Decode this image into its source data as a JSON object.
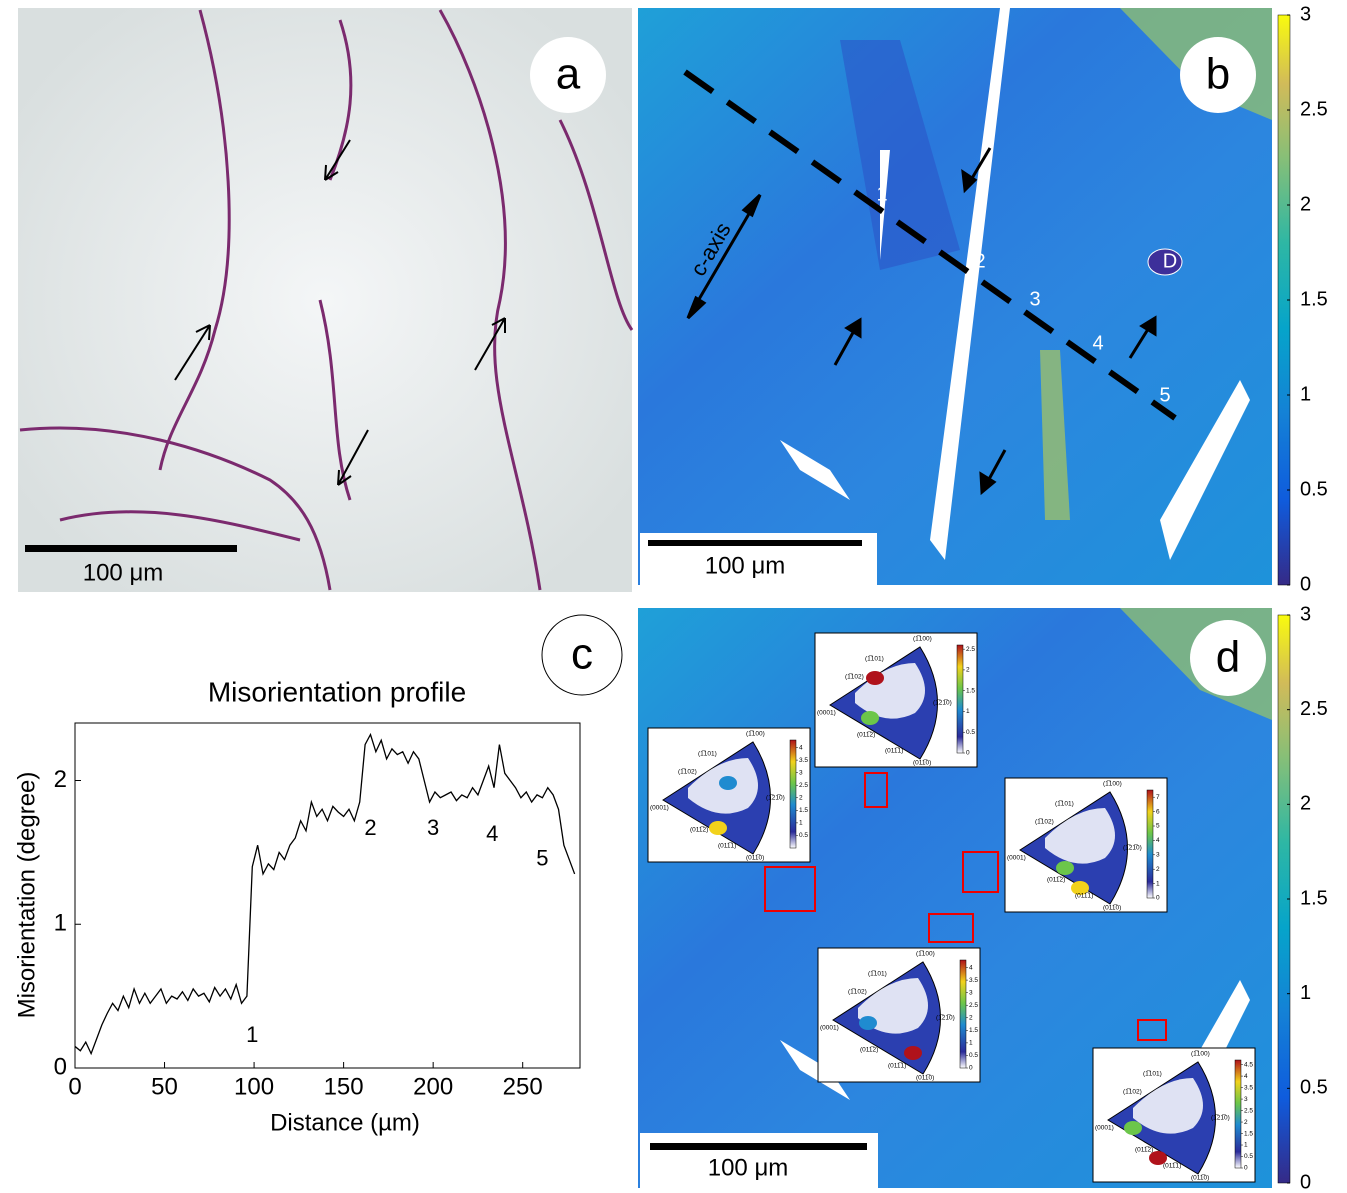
{
  "panels": {
    "a": {
      "label": "a",
      "scale_bar": "100 μm"
    },
    "b": {
      "label": "b",
      "scale_bar": "100 μm",
      "profile_labels": [
        "1",
        "2",
        "3",
        "4",
        "5"
      ],
      "grain_label": "D",
      "axis_label": "c-axis",
      "colorbar": {
        "lim": [
          0,
          3
        ],
        "ticks": [
          0,
          0.5,
          1,
          1.5,
          2,
          2.5,
          3
        ]
      }
    },
    "c": {
      "label": "c"
    },
    "d": {
      "label": "d",
      "scale_bar": "100 μm",
      "colorbar": {
        "lim": [
          0,
          3
        ],
        "ticks": [
          0,
          0.5,
          1,
          1.5,
          2,
          2.5,
          3
        ]
      },
      "poles": [
        "(0001)",
        "(1̅101)",
        "(1̅102)",
        "(1̅100)",
        "(1̅21̅0)",
        "(011̅0)",
        "(011̅1)",
        "(011̅2)"
      ],
      "ipf_insets": [
        {
          "cbar_lim": [
            0,
            2.6
          ],
          "cbar_ticks": [
            0,
            0.5,
            1,
            1.5,
            2,
            2.5
          ]
        },
        {
          "cbar_lim": [
            0,
            4.3
          ],
          "cbar_ticks": [
            0.5,
            1,
            1.5,
            2,
            2.5,
            3,
            3.5,
            4
          ]
        },
        {
          "cbar_lim": [
            0,
            7.5
          ],
          "cbar_ticks": [
            0,
            1,
            2,
            3,
            4,
            5,
            6,
            7
          ]
        },
        {
          "cbar_lim": [
            0,
            4.3
          ],
          "cbar_ticks": [
            0,
            0.5,
            1,
            1.5,
            2,
            2.5,
            3,
            3.5,
            4
          ]
        },
        {
          "cbar_lim": [
            0,
            4.7
          ],
          "cbar_ticks": [
            0,
            0.5,
            1,
            1.5,
            2,
            2.5,
            3,
            3.5,
            4,
            4.5
          ]
        }
      ]
    }
  },
  "chart_data": {
    "type": "line",
    "title": "Misorientation profile",
    "x_label": "Distance (µm)",
    "y_label": "Misorientation (degree)",
    "color": "#000000",
    "xlim": [
      0,
      282
    ],
    "ylim": [
      0,
      2.4
    ],
    "xticks": [
      0,
      50,
      100,
      150,
      200,
      250
    ],
    "yticks": [
      0,
      1,
      2
    ],
    "x": [
      0,
      3,
      6,
      9,
      12,
      15,
      18,
      21,
      24,
      27,
      30,
      33,
      36,
      39,
      42,
      45,
      48,
      51,
      54,
      57,
      60,
      63,
      66,
      69,
      72,
      75,
      78,
      81,
      84,
      87,
      90,
      93,
      96,
      99,
      102,
      105,
      108,
      111,
      114,
      117,
      120,
      123,
      126,
      129,
      132,
      135,
      138,
      141,
      144,
      147,
      150,
      153,
      156,
      159,
      162,
      165,
      168,
      171,
      174,
      177,
      180,
      183,
      186,
      189,
      192,
      195,
      198,
      201,
      204,
      207,
      210,
      213,
      216,
      219,
      222,
      225,
      228,
      231,
      234,
      237,
      240,
      243,
      246,
      249,
      252,
      255,
      258,
      261,
      264,
      267,
      270,
      273,
      276,
      279
    ],
    "values": [
      0.15,
      0.12,
      0.18,
      0.1,
      0.2,
      0.3,
      0.38,
      0.45,
      0.4,
      0.5,
      0.42,
      0.55,
      0.45,
      0.52,
      0.45,
      0.5,
      0.55,
      0.45,
      0.5,
      0.48,
      0.53,
      0.47,
      0.55,
      0.5,
      0.52,
      0.46,
      0.56,
      0.5,
      0.55,
      0.48,
      0.58,
      0.45,
      0.5,
      1.4,
      1.55,
      1.35,
      1.42,
      1.38,
      1.5,
      1.45,
      1.55,
      1.6,
      1.72,
      1.65,
      1.85,
      1.75,
      1.8,
      1.72,
      1.82,
      1.78,
      1.75,
      1.8,
      1.72,
      1.85,
      2.25,
      2.32,
      2.2,
      2.28,
      2.15,
      2.22,
      2.18,
      2.2,
      2.12,
      2.2,
      2.15,
      2.0,
      1.85,
      1.92,
      1.88,
      1.9,
      1.92,
      1.86,
      1.9,
      1.88,
      1.95,
      1.9,
      2.0,
      2.1,
      1.95,
      2.25,
      2.05,
      2.0,
      1.95,
      1.88,
      1.92,
      1.85,
      1.9,
      1.88,
      1.95,
      1.9,
      1.8,
      1.55,
      1.45,
      1.35
    ],
    "annotations": [
      {
        "text": "1",
        "x": 99,
        "y": 0.22
      },
      {
        "text": "2",
        "x": 165,
        "y": 1.66
      },
      {
        "text": "3",
        "x": 200,
        "y": 1.66
      },
      {
        "text": "4",
        "x": 233,
        "y": 1.62
      },
      {
        "text": "5",
        "x": 261,
        "y": 1.45
      }
    ]
  }
}
